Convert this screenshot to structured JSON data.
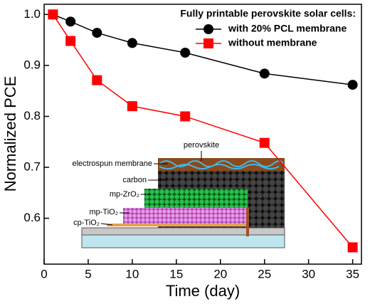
{
  "chart_data": {
    "type": "line",
    "xlabel": "Time (day)",
    "ylabel": "Normalized PCE",
    "x": [
      1,
      3,
      6,
      10,
      16,
      25,
      35
    ],
    "series": [
      {
        "name": "with 20% PCL membrane",
        "color": "#000000",
        "marker": "circle",
        "values": [
          1.0,
          0.986,
          0.964,
          0.944,
          0.925,
          0.884,
          0.862
        ]
      },
      {
        "name": "without membrane",
        "color": "#ff0000",
        "marker": "square",
        "values": [
          1.0,
          0.948,
          0.871,
          0.82,
          0.8,
          0.748,
          0.543
        ]
      }
    ],
    "legend_title": "Fully printable perovskite solar cells:",
    "legend": "upper right",
    "xlim": [
      0,
      36
    ],
    "xticks": [
      0,
      5,
      10,
      15,
      20,
      25,
      30,
      35
    ],
    "ylim": [
      0.51,
      1.02
    ],
    "yticks": [
      0.6,
      0.7,
      0.8,
      0.9,
      {
        "value": 1,
        "label": "1.0"
      }
    ],
    "inset": {
      "labels": [
        "perovskite",
        "electrospun membrane",
        "carbon",
        "mp-ZrO₂",
        "mp-TiO₂",
        "cp-TiO₂"
      ]
    }
  }
}
